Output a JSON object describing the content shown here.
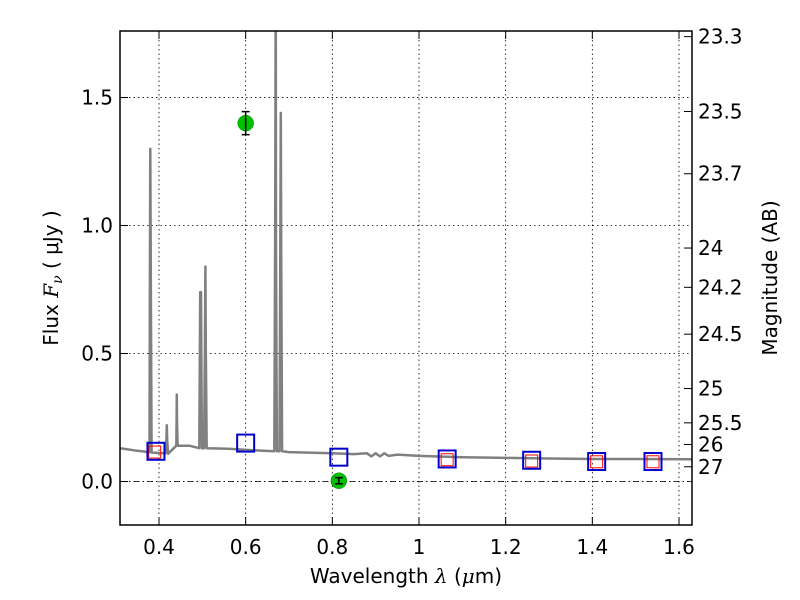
{
  "chart_data": {
    "type": "line",
    "xlabel_prefix": "Wavelength",
    "xlabel_symbol": "λ",
    "xlabel_unit_open": "(",
    "xlabel_unit_mu": "μ",
    "xlabel_unit_rest": "m)",
    "ylabel_prefix": "Flux",
    "ylabel_symbol": "F",
    "ylabel_sub": "ν",
    "ylabel_unit": "( μJy )",
    "y2label": "Magnitude (AB)",
    "xlim": [
      0.31,
      1.63
    ],
    "ylim": [
      -0.17,
      1.76
    ],
    "grid": true,
    "x_ticks": [
      {
        "value": 0.4,
        "label": "0.4"
      },
      {
        "value": 0.6,
        "label": "0.6"
      },
      {
        "value": 0.8,
        "label": "0.8"
      },
      {
        "value": 1.0,
        "label": "1"
      },
      {
        "value": 1.2,
        "label": "1.2"
      },
      {
        "value": 1.4,
        "label": "1.4"
      },
      {
        "value": 1.6,
        "label": "1.6"
      }
    ],
    "y_ticks": [
      {
        "value": 0.0,
        "label": "0.0"
      },
      {
        "value": 0.5,
        "label": "0.5"
      },
      {
        "value": 1.0,
        "label": "1.0"
      },
      {
        "value": 1.5,
        "label": "1.5"
      }
    ],
    "mag_ticks": [
      {
        "value": 23.3,
        "label": "23.3"
      },
      {
        "value": 23.5,
        "label": "23.5"
      },
      {
        "value": 23.7,
        "label": "23.7"
      },
      {
        "value": 24.0,
        "label": "24"
      },
      {
        "value": 24.2,
        "label": "24.2"
      },
      {
        "value": 24.5,
        "label": "24.5"
      },
      {
        "value": 25.0,
        "label": "25"
      },
      {
        "value": 25.5,
        "label": "25.5"
      },
      {
        "value": 26.0,
        "label": "26"
      },
      {
        "value": 27.0,
        "label": "27"
      }
    ],
    "zero_line": true,
    "series": [
      {
        "name": "model_spectrum",
        "style": "line",
        "color": "#808080",
        "points": [
          [
            0.31,
            0.13
          ],
          [
            0.35,
            0.12
          ],
          [
            0.378,
            0.115
          ],
          [
            0.379,
            0.8
          ],
          [
            0.38,
            1.3
          ],
          [
            0.381,
            0.8
          ],
          [
            0.383,
            0.113
          ],
          [
            0.415,
            0.11
          ],
          [
            0.417,
            0.16
          ],
          [
            0.418,
            0.22
          ],
          [
            0.419,
            0.16
          ],
          [
            0.421,
            0.108
          ],
          [
            0.44,
            0.14
          ],
          [
            0.4405,
            0.24
          ],
          [
            0.441,
            0.34
          ],
          [
            0.4415,
            0.24
          ],
          [
            0.443,
            0.14
          ],
          [
            0.47,
            0.14
          ],
          [
            0.493,
            0.13
          ],
          [
            0.495,
            0.74
          ],
          [
            0.497,
            0.74
          ],
          [
            0.499,
            0.13
          ],
          [
            0.504,
            0.13
          ],
          [
            0.506,
            0.52
          ],
          [
            0.507,
            0.84
          ],
          [
            0.508,
            0.52
          ],
          [
            0.51,
            0.13
          ],
          [
            0.56,
            0.128
          ],
          [
            0.64,
            0.12
          ],
          [
            0.666,
            0.118
          ],
          [
            0.668,
            0.9
          ],
          [
            0.6685,
            1.39
          ],
          [
            0.669,
            1.76
          ],
          [
            0.6695,
            1.76
          ],
          [
            0.67,
            0.9
          ],
          [
            0.672,
            0.118
          ],
          [
            0.678,
            0.118
          ],
          [
            0.68,
            0.9
          ],
          [
            0.681,
            1.44
          ],
          [
            0.682,
            0.9
          ],
          [
            0.684,
            0.118
          ],
          [
            0.7,
            0.115
          ],
          [
            0.8,
            0.11
          ],
          [
            0.85,
            0.107
          ],
          [
            0.88,
            0.11
          ],
          [
            0.89,
            0.098
          ],
          [
            0.9,
            0.11
          ],
          [
            0.91,
            0.098
          ],
          [
            0.92,
            0.11
          ],
          [
            0.93,
            0.1
          ],
          [
            0.95,
            0.105
          ],
          [
            1.0,
            0.1
          ],
          [
            1.1,
            0.095
          ],
          [
            1.2,
            0.092
          ],
          [
            1.3,
            0.09
          ],
          [
            1.4,
            0.088
          ],
          [
            1.5,
            0.088
          ],
          [
            1.63,
            0.087
          ]
        ]
      },
      {
        "name": "model_photometry",
        "style": "red_squares",
        "color": "#ff0000",
        "points": [
          [
            0.39,
            0.115
          ],
          [
            1.065,
            0.085
          ],
          [
            1.26,
            0.08
          ],
          [
            1.41,
            0.077
          ],
          [
            1.54,
            0.077
          ]
        ]
      },
      {
        "name": "observed_photometry",
        "style": "blue_squares",
        "color": "#0000cc",
        "points": [
          [
            0.393,
            0.118
          ],
          [
            0.6,
            0.15
          ],
          [
            0.815,
            0.095
          ],
          [
            1.065,
            0.088
          ],
          [
            1.26,
            0.083
          ],
          [
            1.41,
            0.078
          ],
          [
            1.54,
            0.078
          ]
        ]
      },
      {
        "name": "detections",
        "style": "green_circles",
        "color": "#00c000",
        "points": [
          {
            "x": 0.6,
            "y": 1.4,
            "err": 0.045
          },
          {
            "x": 0.815,
            "y": 0.003,
            "err": 0.012
          }
        ]
      }
    ]
  }
}
